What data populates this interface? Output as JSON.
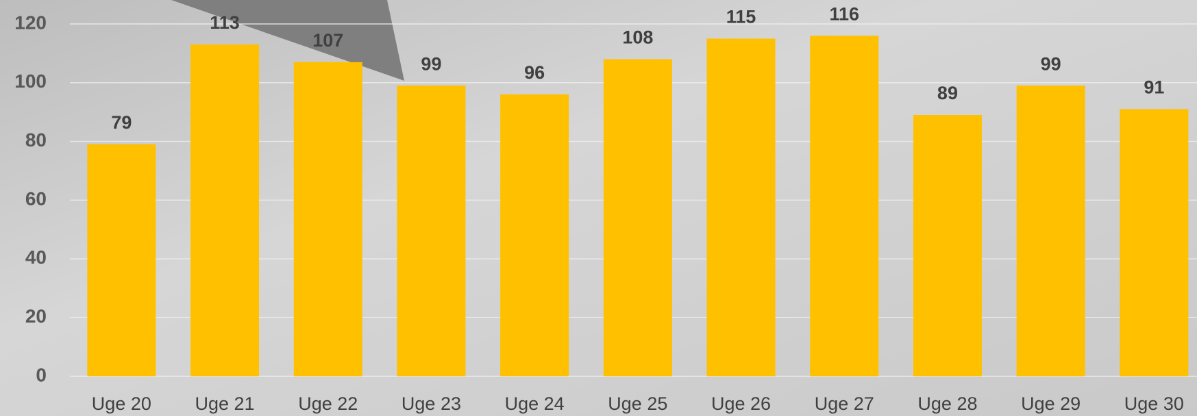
{
  "chart_data": {
    "type": "bar",
    "categories": [
      "Uge 20",
      "Uge 21",
      "Uge 22",
      "Uge 23",
      "Uge 24",
      "Uge 25",
      "Uge 26",
      "Uge 27",
      "Uge 28",
      "Uge 29",
      "Uge 30"
    ],
    "values": [
      79,
      113,
      107,
      99,
      96,
      108,
      115,
      116,
      89,
      99,
      91
    ],
    "color": "#ffc000",
    "ylim": [
      0,
      120
    ],
    "yticks": [
      0,
      20,
      40,
      60,
      80,
      100,
      120
    ],
    "grid": true
  }
}
